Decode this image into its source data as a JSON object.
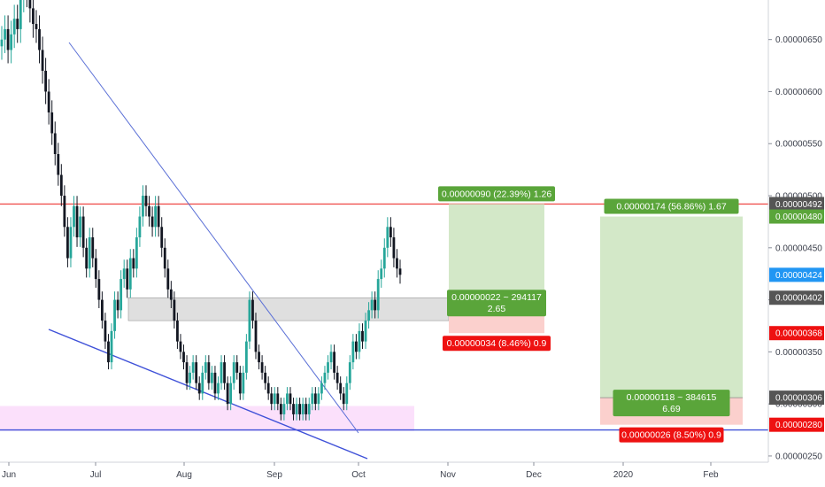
{
  "colors": {
    "bull": "#26a69a",
    "bear": "#131722",
    "resistance": "#f05350",
    "trendline": "#3f51d8",
    "trendline_light": "#5a6fd6",
    "profit_fill": "#d3e8c8",
    "loss_fill": "#fbd0cd",
    "profit_tag": "#5aa53a",
    "loss_tag": "#ee1111",
    "zone_gray": "#d9d9d9",
    "zone_pink": "#fbe0fb",
    "current_tag": "#2196f3",
    "dark_tag": "#555555",
    "axis_bg": "#ffffff"
  },
  "chart_data": {
    "type": "candlestick",
    "x_ticks": [
      "Jun",
      "Jul",
      "Aug",
      "Sep",
      "Oct",
      "Nov",
      "Dec",
      "2020",
      "Feb"
    ],
    "y_ticks": [
      "0.00000650",
      "0.00000600",
      "0.00000550",
      "0.00000500",
      "0.00000450",
      "0.00000400",
      "0.00000350",
      "0.00000300",
      "0.00000250"
    ],
    "ylim": [
      2.44e-06,
      6.88e-06
    ],
    "price_tags": [
      {
        "label": "0.00000492",
        "value": 4.92e-06,
        "style": "dark"
      },
      {
        "label": "0.00000480",
        "value": 4.8e-06,
        "style": "green"
      },
      {
        "label": "0.00000424",
        "value": 4.24e-06,
        "style": "current"
      },
      {
        "label": "0.00000402",
        "value": 4.02e-06,
        "style": "dark"
      },
      {
        "label": "0.00000368",
        "value": 3.68e-06,
        "style": "red"
      },
      {
        "label": "0.00000306",
        "value": 3.06e-06,
        "style": "dark"
      },
      {
        "label": "0.00000280",
        "value": 2.8e-06,
        "style": "red"
      }
    ],
    "resistance_line": 4.92e-06,
    "support_line": 2.75e-06,
    "gray_zone": [
      3.8e-06,
      4.02e-06
    ],
    "pink_zone": [
      2.74e-06,
      2.98e-06
    ],
    "positions": [
      {
        "entry": 4.02e-06,
        "target": 4.92e-06,
        "stop": 3.68e-06,
        "profit_label": "0.00000090 (22.39%) 1.26",
        "center_label_1": "0.00000022 ~ 294117",
        "center_label_2": "2.65",
        "loss_label": "0.00000034 (8.46%) 0.9"
      },
      {
        "entry": 3.06e-06,
        "target": 4.8e-06,
        "stop": 2.8e-06,
        "profit_label": "0.00000174 (56.86%) 1.67",
        "center_label_1": "0.00000118 ~ 384615",
        "center_label_2": "6.69",
        "loss_label": "0.00000026 (8.50%) 0.9"
      }
    ],
    "candles_close": [
      6.5e-06,
      6.6e-06,
      6.4e-06,
      6.55e-06,
      6.7e-06,
      6.6e-06,
      6.9e-06,
      7e-06,
      6.95e-06,
      6.8e-06,
      6.65e-06,
      6.6e-06,
      6.4e-06,
      6.2e-06,
      6e-06,
      5.8e-06,
      5.6e-06,
      5.4e-06,
      5.2e-06,
      5e-06,
      4.7e-06,
      4.4e-06,
      4.7e-06,
      4.9e-06,
      4.6e-06,
      4.8e-06,
      4.5e-06,
      4.3e-06,
      4.6e-06,
      4.4e-06,
      4.2e-06,
      4e-06,
      3.8e-06,
      3.6e-06,
      3.4e-06,
      3.7e-06,
      4e-06,
      3.9e-06,
      4.2e-06,
      4.3e-06,
      4.1e-06,
      4.4e-06,
      4.3e-06,
      4.6e-06,
      4.8e-06,
      5e-06,
      4.9e-06,
      4.8e-06,
      4.7e-06,
      4.9e-06,
      4.7e-06,
      4.5e-06,
      4.3e-06,
      4.1e-06,
      4e-06,
      3.8e-06,
      3.6e-06,
      3.5e-06,
      3.4e-06,
      3.2e-06,
      3.3e-06,
      3.4e-06,
      3.2e-06,
      3.1e-06,
      3.3e-06,
      3.4e-06,
      3.2e-06,
      3.3e-06,
      3.1e-06,
      3.2e-06,
      3.4e-06,
      3.2e-06,
      3e-06,
      3.2e-06,
      3.4e-06,
      3.3e-06,
      3.1e-06,
      3.3e-06,
      3.6e-06,
      4e-06,
      3.8e-06,
      3.5e-06,
      3.4e-06,
      3.3e-06,
      3.2e-06,
      3.1e-06,
      3e-06,
      3.1e-06,
      3e-06,
      2.9e-06,
      3e-06,
      3.1e-06,
      3e-06,
      2.9e-06,
      3e-06,
      2.9e-06,
      3e-06,
      2.9e-06,
      3e-06,
      3.1e-06,
      3e-06,
      3.1e-06,
      3.2e-06,
      3.3e-06,
      3.4e-06,
      3.5e-06,
      3.3e-06,
      3.2e-06,
      3.1e-06,
      3e-06,
      3.2e-06,
      3.4e-06,
      3.6e-06,
      3.5e-06,
      3.7e-06,
      3.6e-06,
      3.8e-06,
      3.9e-06,
      4e-06,
      3.9e-06,
      4.2e-06,
      4.3e-06,
      4.5e-06,
      4.7e-06,
      4.6e-06,
      4.4e-06,
      4.3e-06,
      4.24e-06
    ]
  }
}
